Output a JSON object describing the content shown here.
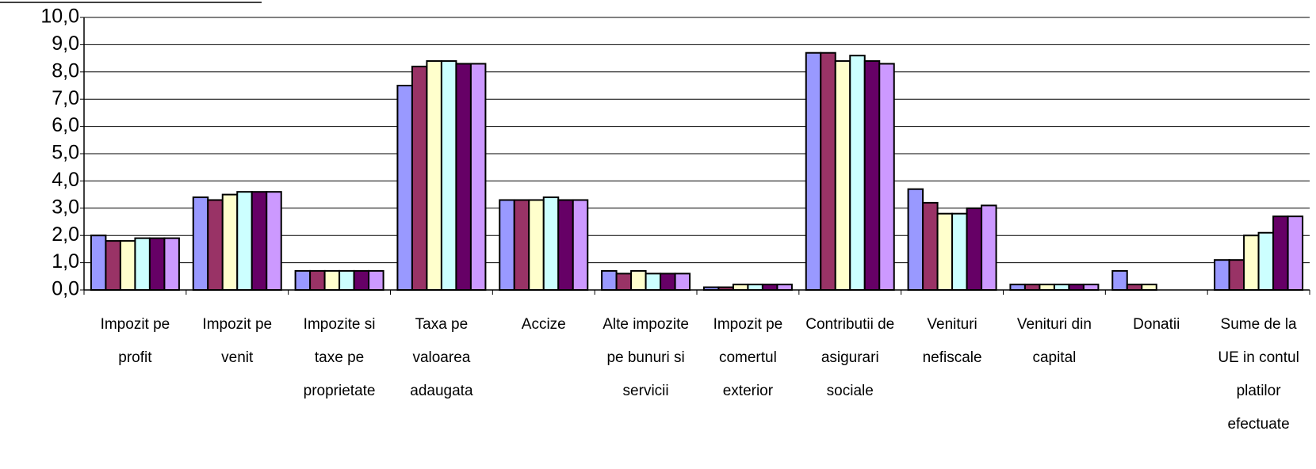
{
  "chart_data": {
    "type": "bar",
    "categories": [
      "Impozit pe profit",
      "Impozit pe venit",
      "Impozite si taxe pe proprietate",
      "Taxa pe valoarea adaugata",
      "Accize",
      "Alte impozite pe bunuri si servicii",
      "Impozit pe comertul exterior",
      "Contributii de asigurari sociale",
      "Venituri nefiscale",
      "Venituri din capital",
      "Donatii",
      "Sume de la UE in contul platilor efectuate"
    ],
    "series": [
      {
        "color": "#9999ff",
        "values": [
          2.0,
          3.4,
          0.7,
          7.5,
          3.3,
          0.7,
          0.1,
          8.7,
          3.7,
          0.2,
          0.7,
          1.1
        ]
      },
      {
        "color": "#993366",
        "values": [
          1.8,
          3.3,
          0.7,
          8.2,
          3.3,
          0.6,
          0.1,
          8.7,
          3.2,
          0.2,
          0.2,
          1.1
        ]
      },
      {
        "color": "#ffffcc",
        "values": [
          1.8,
          3.5,
          0.7,
          8.4,
          3.3,
          0.7,
          0.2,
          8.4,
          2.8,
          0.2,
          0.2,
          2.0
        ]
      },
      {
        "color": "#ccffff",
        "values": [
          1.9,
          3.6,
          0.7,
          8.4,
          3.4,
          0.6,
          0.2,
          8.6,
          2.8,
          0.2,
          null,
          2.1
        ]
      },
      {
        "color": "#660066",
        "values": [
          1.9,
          3.6,
          0.7,
          8.3,
          3.3,
          0.6,
          0.2,
          8.4,
          3.0,
          0.2,
          null,
          2.7
        ]
      },
      {
        "color": "#cc99ff",
        "values": [
          1.9,
          3.6,
          0.7,
          8.3,
          3.3,
          0.6,
          0.2,
          8.3,
          3.1,
          0.2,
          null,
          2.7
        ]
      }
    ],
    "ylim": [
      0,
      10
    ],
    "yticks": [
      {
        "value": 0,
        "label": "0,0"
      },
      {
        "value": 1,
        "label": "1,0"
      },
      {
        "value": 2,
        "label": "2,0"
      },
      {
        "value": 3,
        "label": "3,0"
      },
      {
        "value": 4,
        "label": "4,0"
      },
      {
        "value": 5,
        "label": "5,0"
      },
      {
        "value": 6,
        "label": "6,0"
      },
      {
        "value": 7,
        "label": "7,0"
      },
      {
        "value": 8,
        "label": "8,0"
      },
      {
        "value": 9,
        "label": "9,0"
      },
      {
        "value": 10,
        "label": "10,0"
      }
    ],
    "grid": true
  }
}
